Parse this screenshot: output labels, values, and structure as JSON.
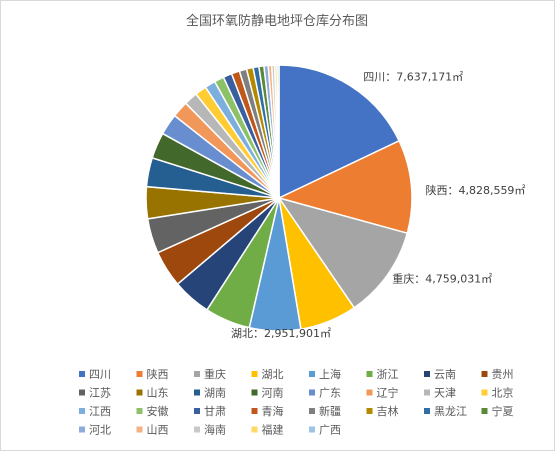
{
  "chart_data": {
    "type": "pie",
    "title": "全国环氧防静电地坪仓库分布图",
    "unit": "㎡",
    "categories": [
      "四川",
      "陕西",
      "重庆",
      "湖北",
      "上海",
      "浙江",
      "云南",
      "贵州",
      "江苏",
      "山东",
      "湖南",
      "河南",
      "广东",
      "辽宁",
      "天津",
      "北京",
      "江西",
      "安徽",
      "甘肃",
      "青海",
      "新疆",
      "吉林",
      "黑龙江",
      "宁夏",
      "河北",
      "山西",
      "海南",
      "福建",
      "广西"
    ],
    "values": [
      7637171,
      4828559,
      4759031,
      2951901,
      2650000,
      2350000,
      2000000,
      1900000,
      1800000,
      1650000,
      1500000,
      1350000,
      1100000,
      850000,
      700000,
      600000,
      550000,
      500000,
      450000,
      420000,
      380000,
      340000,
      300000,
      260000,
      220000,
      180000,
      150000,
      120000,
      100000
    ],
    "colors": [
      "#4472C4",
      "#ED7D31",
      "#A5A5A5",
      "#FFC000",
      "#5B9BD5",
      "#70AD47",
      "#264478",
      "#9E480E",
      "#636363",
      "#997300",
      "#255E91",
      "#43682B",
      "#698ED0",
      "#F1975A",
      "#B7B7B7",
      "#FFCD33",
      "#7CAFDD",
      "#8CC168",
      "#3A5F9F",
      "#C0581B",
      "#7F7F7F",
      "#B38900",
      "#316EA6",
      "#5A8A38",
      "#8FAADC",
      "#F4B183",
      "#C9C9C9",
      "#FFD966",
      "#9DC3E6"
    ],
    "data_labels": [
      {
        "name": "四川",
        "text": "7,637,171㎡"
      },
      {
        "name": "陕西",
        "text": "4,828,559㎡"
      },
      {
        "name": "重庆",
        "text": "4,759,031㎡"
      },
      {
        "name": "湖北",
        "text": "2,951,901㎡"
      }
    ],
    "label_separator": "：",
    "legend_position": "bottom"
  }
}
